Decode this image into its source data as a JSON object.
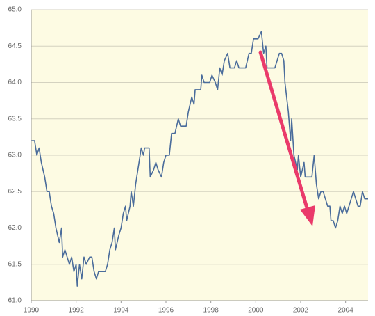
{
  "chart_data": {
    "type": "line",
    "x": [
      1990.0,
      1990.15,
      1990.25,
      1990.35,
      1990.45,
      1990.6,
      1990.7,
      1990.8,
      1990.9,
      1991.0,
      1991.1,
      1991.25,
      1991.35,
      1991.4,
      1991.5,
      1991.6,
      1991.7,
      1991.8,
      1991.9,
      1992.0,
      1992.05,
      1992.15,
      1992.25,
      1992.35,
      1992.45,
      1992.6,
      1992.7,
      1992.8,
      1992.9,
      1993.0,
      1993.3,
      1993.4,
      1993.5,
      1993.6,
      1993.7,
      1993.75,
      1993.9,
      1994.0,
      1994.1,
      1994.2,
      1994.25,
      1994.4,
      1994.45,
      1994.55,
      1994.65,
      1994.8,
      1994.9,
      1995.0,
      1995.05,
      1995.25,
      1995.3,
      1995.45,
      1995.55,
      1995.65,
      1995.8,
      1995.9,
      1996.0,
      1996.15,
      1996.25,
      1996.4,
      1996.55,
      1996.65,
      1996.9,
      1997.0,
      1997.15,
      1997.25,
      1997.3,
      1997.55,
      1997.6,
      1997.7,
      1997.95,
      1998.05,
      1998.2,
      1998.3,
      1998.4,
      1998.5,
      1998.6,
      1998.75,
      1998.85,
      1999.05,
      1999.15,
      1999.25,
      1999.55,
      1999.7,
      1999.8,
      1999.9,
      2000.1,
      2000.25,
      2000.35,
      2000.45,
      2000.5,
      2000.85,
      2000.95,
      2001.05,
      2001.15,
      2001.25,
      2001.3,
      2001.45,
      2001.55,
      2001.6,
      2001.7,
      2001.85,
      2001.9,
      2002.0,
      2002.15,
      2002.2,
      2002.5,
      2002.6,
      2002.7,
      2002.8,
      2002.9,
      2003.0,
      2003.1,
      2003.2,
      2003.3,
      2003.35,
      2003.45,
      2003.55,
      2003.65,
      2003.75,
      2003.85,
      2003.95,
      2004.05,
      2004.15,
      2004.25,
      2004.35,
      2004.45,
      2004.55,
      2004.65,
      2004.75,
      2004.85,
      2005.0
    ],
    "series": [
      {
        "color": "#4a6c9b",
        "values": [
          63.2,
          63.2,
          63.0,
          63.1,
          62.9,
          62.7,
          62.5,
          62.5,
          62.3,
          62.2,
          62.0,
          61.8,
          62.0,
          61.6,
          61.7,
          61.6,
          61.5,
          61.6,
          61.4,
          61.5,
          61.2,
          61.5,
          61.3,
          61.6,
          61.5,
          61.6,
          61.6,
          61.4,
          61.3,
          61.4,
          61.4,
          61.5,
          61.7,
          61.8,
          62.0,
          61.7,
          61.9,
          62.0,
          62.2,
          62.3,
          62.1,
          62.3,
          62.5,
          62.3,
          62.6,
          62.9,
          63.1,
          63.0,
          63.1,
          63.1,
          62.7,
          62.8,
          62.9,
          62.8,
          62.7,
          62.9,
          63.0,
          63.0,
          63.3,
          63.3,
          63.5,
          63.4,
          63.4,
          63.6,
          63.8,
          63.7,
          63.9,
          63.9,
          64.1,
          64.0,
          64.0,
          64.1,
          64.0,
          63.9,
          64.2,
          64.1,
          64.3,
          64.4,
          64.2,
          64.2,
          64.3,
          64.2,
          64.2,
          64.4,
          64.4,
          64.6,
          64.6,
          64.7,
          64.4,
          64.5,
          64.2,
          64.2,
          64.3,
          64.4,
          64.4,
          64.3,
          64.0,
          63.6,
          63.2,
          63.5,
          63.0,
          62.8,
          63.0,
          62.7,
          62.9,
          62.7,
          62.7,
          63.0,
          62.6,
          62.4,
          62.5,
          62.5,
          62.4,
          62.3,
          62.3,
          62.1,
          62.1,
          62.0,
          62.1,
          62.3,
          62.2,
          62.3,
          62.2,
          62.3,
          62.4,
          62.5,
          62.4,
          62.3,
          62.3,
          62.5,
          62.4,
          62.4
        ]
      }
    ],
    "xlim": [
      1990,
      2005
    ],
    "xticks": [
      1990,
      1992,
      1994,
      1996,
      1998,
      2000,
      2002,
      2004
    ],
    "ylim": [
      61,
      65
    ],
    "yticks": [
      {
        "value": 61,
        "label": "61.0"
      },
      {
        "value": 61.5,
        "label": "61.5"
      },
      {
        "value": 62,
        "label": "62.0"
      },
      {
        "value": 62.5,
        "label": "62.5"
      },
      {
        "value": 63,
        "label": "63.0"
      },
      {
        "value": 63.5,
        "label": "63.5"
      },
      {
        "value": 64,
        "label": "64.0"
      },
      {
        "value": 64.5,
        "label": "64.5"
      },
      {
        "value": 65,
        "label": "65.0"
      }
    ],
    "grid": true
  }
}
